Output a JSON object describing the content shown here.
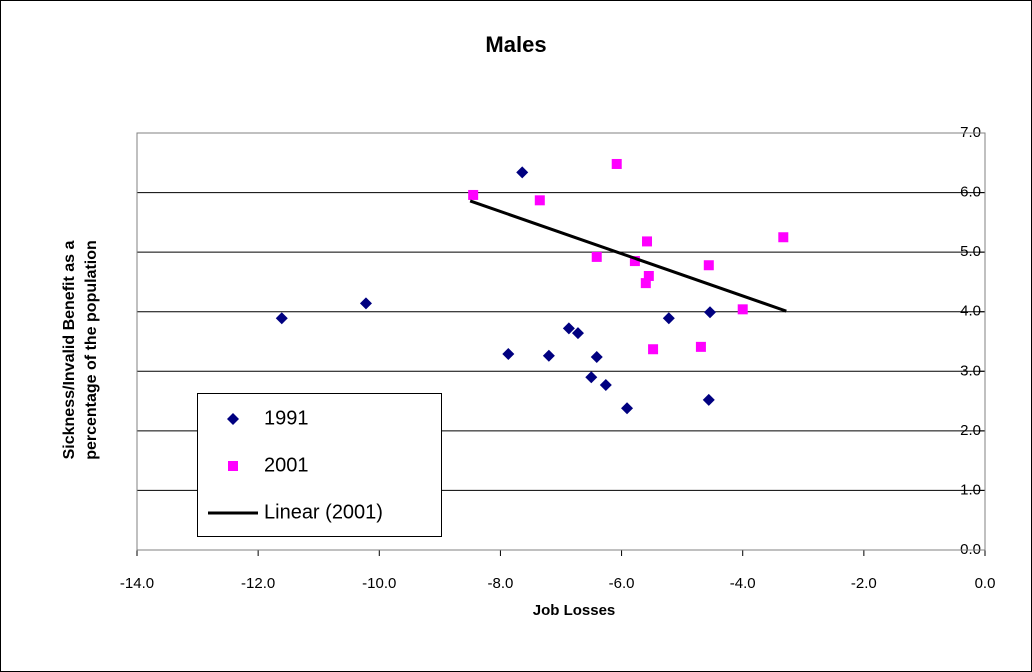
{
  "chart_data": {
    "type": "scatter",
    "title": "Males",
    "xlabel": "Job Losses",
    "ylabel": [
      "Sickness/Invalid Benefit as a",
      "percentage of the population"
    ],
    "xlim": [
      -14,
      0
    ],
    "ylim": [
      0,
      7
    ],
    "xticks": [
      {
        "value": -14,
        "label": "-14.0"
      },
      {
        "value": -12,
        "label": "-12.0"
      },
      {
        "value": -10,
        "label": "-10.0"
      },
      {
        "value": -8,
        "label": "-8.0"
      },
      {
        "value": -6,
        "label": "-6.0"
      },
      {
        "value": -4,
        "label": "-4.0"
      },
      {
        "value": -2,
        "label": "-2.0"
      },
      {
        "value": 0,
        "label": "0.0"
      }
    ],
    "yticks": [
      {
        "value": 0,
        "label": "0.0"
      },
      {
        "value": 1,
        "label": "1.0"
      },
      {
        "value": 2,
        "label": "2.0"
      },
      {
        "value": 3,
        "label": "3.0"
      },
      {
        "value": 4,
        "label": "4.0"
      },
      {
        "value": 5,
        "label": "5.0"
      },
      {
        "value": 6,
        "label": "6.0"
      },
      {
        "value": 7,
        "label": "7.0"
      }
    ],
    "grid": true,
    "legend": "lower left",
    "series": [
      {
        "name": "1991",
        "color": "#000080",
        "marker": "diamond",
        "x": [
          -11.61,
          -10.22,
          -7.64,
          -7.87,
          -7.2,
          -6.87,
          -6.72,
          -6.41,
          -6.5,
          -6.26,
          -5.91,
          -5.22,
          -4.54,
          -4.56
        ],
        "values": [
          3.89,
          4.14,
          6.34,
          3.29,
          3.26,
          3.72,
          3.64,
          3.24,
          2.9,
          2.77,
          2.38,
          3.89,
          3.99,
          2.52
        ]
      },
      {
        "name": "2001",
        "color": "#ff00ff",
        "marker": "square",
        "x": [
          -8.45,
          -7.35,
          -6.08,
          -6.41,
          -5.58,
          -5.78,
          -5.55,
          -5.6,
          -5.48,
          -4.69,
          -4.56,
          -4.0,
          -3.33
        ],
        "values": [
          5.96,
          5.87,
          6.48,
          4.92,
          5.18,
          4.85,
          4.6,
          4.48,
          3.37,
          3.41,
          4.78,
          4.04,
          5.25
        ]
      },
      {
        "name": "Linear (2001)",
        "color": "#000000",
        "marker": "line",
        "x": [
          -8.5,
          -3.28
        ],
        "values": [
          5.86,
          4.01
        ]
      }
    ]
  }
}
